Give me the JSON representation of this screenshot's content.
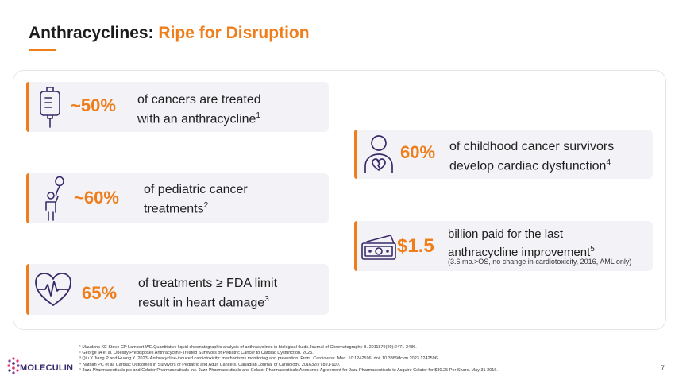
{
  "title": {
    "main": "Anthracyclines:",
    "accent": "Ripe for Disruption"
  },
  "stats": [
    {
      "big": "~50%",
      "line1": "of cancers are treated",
      "line2": "with an anthracycline",
      "sup": "1"
    },
    {
      "big": "~60%",
      "line1": "of pediatric cancer",
      "line2": "treatments",
      "sup": "2"
    },
    {
      "big": "65%",
      "line1": "of treatments ≥ FDA limit",
      "line2": "result in heart damage",
      "sup": "3"
    },
    {
      "big": "60%",
      "line1": "of childhood cancer survivors",
      "line2": "develop cardiac dysfunction",
      "sup": "4"
    },
    {
      "big": "$1.5",
      "line1": "billion paid for the last",
      "line2": "anthracycline improvement",
      "sup": "5",
      "note": "(3.6 mo.>OS, no change in cardiotoxicity, 2016, AML only)"
    }
  ],
  "footnotes": [
    "¹ Maudens KE Stove CP Lambert WE.Quantitative liquid chromatographic analysis of anthracyclines in biological fluids.Journal of Chromatography B. 2011879(29):2471-2486.",
    "² George IA et al. Obesity Predisposes Anthracycline-Treated Survivors of Pediatric Cancer to Cardiac Dysfunction. 2025.",
    "³ Qiu Y Jiang P and Huang Y (2023) Anthracycline-induced cardiotoxicity: mechanisms monitoring and prevention. Front. Cardiovasc. Med. 10:1242596. doi: 10.3389/fcvm.2023.1242596",
    "⁴ Nathan PC et al. Cardiac Outcomes in Survivors of Pediatric and Adult Cancers. Canadian Journal of Cardiology. 201632(7):891-900.",
    "⁵ Jazz Pharmaceuticals plc and Celator Pharmaceuticals Inc. Jazz Pharmaceuticals and Celator Pharmaceuticals Announce Agreement for Jazz Pharmaceuticals to Acquire Celator for $30.25 Per Share. May 31 2016."
  ],
  "logo": {
    "text": "MOLECULIN"
  },
  "page_number": "7",
  "colors": {
    "accent": "#ef7d1a",
    "card": "#f3f2f6",
    "icon": "#3a2a6a"
  },
  "icons": [
    "iv-bag-icon",
    "child-balloon-icon",
    "heart-rate-icon",
    "person-heart-icon",
    "money-icon"
  ]
}
